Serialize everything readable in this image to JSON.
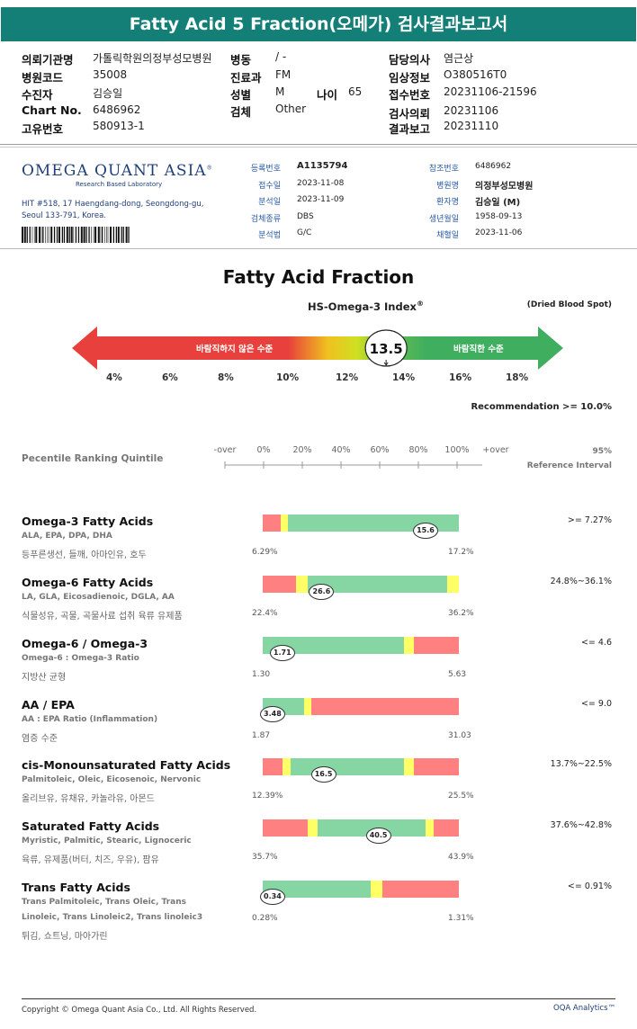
{
  "title": "Fatty Acid 5 Fraction(오메가) 검사결과보고서",
  "patient": {
    "left": [
      {
        "label": "의뢰기관명",
        "value": "가톨릭학원의정부성모병원"
      },
      {
        "label": "병원코드",
        "value": "35008"
      },
      {
        "label": "수진자",
        "value": "김승일"
      },
      {
        "label": "Chart No.",
        "value": "6486962"
      },
      {
        "label": "고유번호",
        "value": "580913-1"
      }
    ],
    "middle": [
      {
        "label": "병동",
        "value": "/ -"
      },
      {
        "label": "진료과",
        "value": "FM"
      },
      {
        "label": "성별",
        "value": "M"
      },
      {
        "label": "검체",
        "value": "Other"
      }
    ],
    "age": {
      "label": "나이",
      "value": "65"
    },
    "right": [
      {
        "label": "담당의사",
        "value": "염근상"
      },
      {
        "label": "임상정보",
        "value": "O380516T0"
      },
      {
        "label": "접수번호",
        "value": "20231106-21596"
      },
      {
        "label": "검사의뢰",
        "value": "20231106"
      },
      {
        "label": "결과보고",
        "value": "20231110"
      }
    ]
  },
  "lab": {
    "logo": "OMEGA QUANT ASIA",
    "logo_tm": "®",
    "subtitle": "Research Based Laboratory",
    "address1": "HIT #518, 17 Haengdang-dong, Seongdong-gu,",
    "address2": "Seoul 133-791, Korea."
  },
  "sample": {
    "left": [
      {
        "label": "등록번호",
        "value": "A1135794",
        "bold": true
      },
      {
        "label": "접수일",
        "value": "2023-11-08"
      },
      {
        "label": "분석일",
        "value": "2023-11-09"
      },
      {
        "label": "검체종류",
        "value": "DBS"
      },
      {
        "label": "분석법",
        "value": "G/C"
      }
    ],
    "right": [
      {
        "label": "참조번호",
        "value": "6486962"
      },
      {
        "label": "병원명",
        "value": "의정부성모병원",
        "bold": true
      },
      {
        "label": "환자명",
        "value": "김승일 (M)",
        "bold": true
      },
      {
        "label": "생년월일",
        "value": "1958-09-13"
      },
      {
        "label": "채혈일",
        "value": "2023-11-06"
      }
    ]
  },
  "index": {
    "heading": "Fatty Acid Fraction",
    "name": "HS-Omega-3 Index",
    "name_reg": "®",
    "sample_type": "(Dried Blood Spot)",
    "bad_label": "바람직하지 않은 수준",
    "good_label": "바람직한 수준",
    "value": "13.5",
    "value_num": 13.5,
    "ticks": [
      "4%",
      "6%",
      "8%",
      "10%",
      "12%",
      "14%",
      "16%",
      "18%"
    ],
    "recommendation": "Recommendation  >= 10.0%",
    "colors": {
      "red": "#e8403c",
      "yellow": "#e6e320",
      "green": "#3fae5f"
    }
  },
  "percentile": {
    "title": "Pecentile Ranking Quintile",
    "scale": [
      "-over",
      "0%",
      "20%",
      "40%",
      "60%",
      "80%",
      "100%",
      "+over"
    ],
    "ref_pct": "95%",
    "ref_label": "Reference Interval"
  },
  "rows": [
    {
      "name": "Omega-3 Fatty Acids",
      "sub": "ALA, EPA, DPA, DHA",
      "sub2": "",
      "desc": "등푸른생선, 들깨, 아마인유, 호두",
      "min": "6.29%",
      "max": "17.2%",
      "value": "15.6",
      "marker_pct": 0.83,
      "ref": ">= 7.27%",
      "segments": [
        {
          "w": 0.09,
          "c": "#ff8080"
        },
        {
          "w": 0.04,
          "c": "#ffff66"
        },
        {
          "w": 0.87,
          "c": "#86d6a3"
        }
      ]
    },
    {
      "name": "Omega-6 Fatty Acids",
      "sub": "LA, GLA, Eicosadienoic, DGLA, AA",
      "sub2": "",
      "desc": "식물성유, 곡물, 곡물사료 섭취 육류 유제품",
      "min": "22.4%",
      "max": "36.2%",
      "value": "26.6",
      "marker_pct": 0.3,
      "ref": "24.8%~36.1%",
      "segments": [
        {
          "w": 0.17,
          "c": "#ff8080"
        },
        {
          "w": 0.06,
          "c": "#ffff66"
        },
        {
          "w": 0.71,
          "c": "#86d6a3"
        },
        {
          "w": 0.06,
          "c": "#ffff66"
        }
      ]
    },
    {
      "name": "Omega-6 / Omega-3",
      "sub": "Omega-6 : Omega-3 Ratio",
      "sub2": "",
      "desc": "지방산 균형",
      "min": "1.30",
      "max": "5.63",
      "value": "1.71",
      "marker_pct": 0.1,
      "ref": "<= 4.6",
      "segments": [
        {
          "w": 0.72,
          "c": "#86d6a3"
        },
        {
          "w": 0.05,
          "c": "#ffff66"
        },
        {
          "w": 0.23,
          "c": "#ff8080"
        }
      ]
    },
    {
      "name": "AA / EPA",
      "sub": "AA : EPA Ratio (Inflammation)",
      "sub2": "",
      "desc": "염증 수준",
      "min": "1.87",
      "max": "31.03",
      "value": "3.48",
      "marker_pct": 0.05,
      "ref": "<= 9.0",
      "segments": [
        {
          "w": 0.21,
          "c": "#86d6a3"
        },
        {
          "w": 0.04,
          "c": "#ffff66"
        },
        {
          "w": 0.75,
          "c": "#ff8080"
        }
      ]
    },
    {
      "name": "cis-Monounsaturated Fatty Acids",
      "sub": "Palmitoleic, Oleic, Eicosenoic, Nervonic",
      "sub2": "",
      "desc": "올리브유, 유채유, 카놀라유, 아몬드",
      "min": "12.39%",
      "max": "25.5%",
      "value": "16.5",
      "marker_pct": 0.31,
      "ref": "13.7%~22.5%",
      "segments": [
        {
          "w": 0.1,
          "c": "#ff8080"
        },
        {
          "w": 0.04,
          "c": "#ffff66"
        },
        {
          "w": 0.58,
          "c": "#86d6a3"
        },
        {
          "w": 0.05,
          "c": "#ffff66"
        },
        {
          "w": 0.23,
          "c": "#ff8080"
        }
      ]
    },
    {
      "name": "Saturated Fatty Acids",
      "sub": "Myristic, Palmitic, Stearic, Lignoceric",
      "sub2": "",
      "desc": "육류, 유제품(버터, 치즈, 우유), 팜유",
      "min": "35.7%",
      "max": "43.9%",
      "value": "40.5",
      "marker_pct": 0.59,
      "ref": "37.6%~42.8%",
      "segments": [
        {
          "w": 0.23,
          "c": "#ff8080"
        },
        {
          "w": 0.05,
          "c": "#ffff66"
        },
        {
          "w": 0.55,
          "c": "#86d6a3"
        },
        {
          "w": 0.04,
          "c": "#ffff66"
        },
        {
          "w": 0.13,
          "c": "#ff8080"
        }
      ]
    },
    {
      "name": "Trans Fatty Acids",
      "sub": "Trans Palmitoleic, Trans Oleic, Trans",
      "sub2": "Linoleic, Trans Linoleic2, Trans linoleic3",
      "desc": "튀김, 쇼트닝, 마아가린",
      "min": "0.28%",
      "max": "1.31%",
      "value": "0.34",
      "marker_pct": 0.05,
      "ref": "<= 0.91%",
      "segments": [
        {
          "w": 0.55,
          "c": "#86d6a3"
        },
        {
          "w": 0.06,
          "c": "#ffff66"
        },
        {
          "w": 0.39,
          "c": "#ff8080"
        }
      ]
    }
  ],
  "footer": {
    "copyright": "Copyright © Omega Quant Asia Co., Ltd.  All Rights Reserved.",
    "brand": "OQA Analytics™"
  }
}
